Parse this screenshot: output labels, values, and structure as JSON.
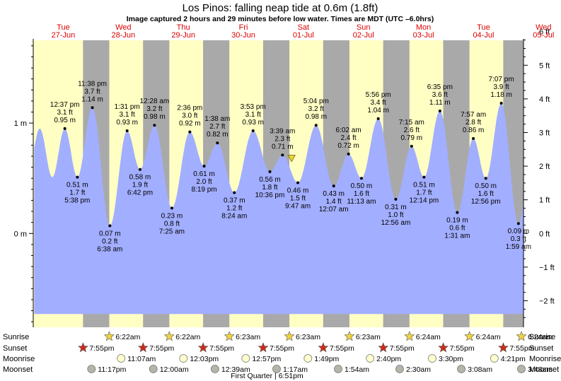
{
  "chart_data": {
    "type": "area",
    "title": "Los Pinos: falling  neap tide at 0.6m (1.8ft)",
    "subtitle": "Image captured 2 hours and 29 minutes before low water. Times are MDT (UTC –6.0hrs)",
    "x_unit": "hours since Tue 27-Jun 00:00 MDT",
    "xlim": [
      0,
      196
    ],
    "ylim_m": [
      -0.85,
      1.75
    ],
    "left_axis": [
      {
        "value": 1,
        "label": "1 m"
      },
      {
        "value": 0,
        "label": "0 m"
      }
    ],
    "right_axis": [
      {
        "value": 6,
        "label": "6 ft"
      },
      {
        "value": 5,
        "label": "5 ft"
      },
      {
        "value": 4,
        "label": "4 ft"
      },
      {
        "value": 3,
        "label": "3 ft"
      },
      {
        "value": 2,
        "label": "2 ft"
      },
      {
        "value": 1,
        "label": "1 ft"
      },
      {
        "value": 0,
        "label": "0 ft"
      },
      {
        "value": -1,
        "label": "−1 ft"
      },
      {
        "value": -2,
        "label": "−2 ft"
      }
    ],
    "days": [
      {
        "name": "Tue",
        "date": "27-Jun",
        "x": 12,
        "color": "#dd0000"
      },
      {
        "name": "Wed",
        "date": "28-Jun",
        "x": 36,
        "color": "#dd0000"
      },
      {
        "name": "Thu",
        "date": "29-Jun",
        "x": 60,
        "color": "#dd0000"
      },
      {
        "name": "Fri",
        "date": "30-Jun",
        "x": 84,
        "color": "#dd0000"
      },
      {
        "name": "Sat",
        "date": "01-Jul",
        "x": 108,
        "color": "#dd0000"
      },
      {
        "name": "Sun",
        "date": "02-Jul",
        "x": 132,
        "color": "#dd0000"
      },
      {
        "name": "Mon",
        "date": "03-Jul",
        "x": 156,
        "color": "#dd0000"
      },
      {
        "name": "Tue",
        "date": "04-Jul",
        "x": 180,
        "color": "#dd0000"
      },
      {
        "name": "Wed",
        "date": "05-Jul",
        "x": 204,
        "color": "#dd0000"
      }
    ],
    "nights": [
      [
        19.9,
        30.4
      ],
      [
        43.9,
        54.4
      ],
      [
        67.9,
        78.4
      ],
      [
        91.9,
        102.4
      ],
      [
        115.9,
        126.4
      ],
      [
        139.9,
        150.4
      ],
      [
        163.9,
        174.4
      ],
      [
        187.9,
        198.4
      ]
    ],
    "tides": [
      {
        "x": 12.62,
        "m": 0.95,
        "time": "12:37 pm",
        "ft": "3.1 ft",
        "mlabel": "0.95 m",
        "type": "high"
      },
      {
        "x": 17.63,
        "m": 0.51,
        "time": "5:38 pm",
        "ft": "1.7 ft",
        "mlabel": "0.51 m",
        "type": "low"
      },
      {
        "x": 23.63,
        "m": 1.14,
        "time": "11:38 pm",
        "ft": "3.7 ft",
        "mlabel": "1.14 m",
        "type": "high"
      },
      {
        "x": 30.63,
        "m": 0.07,
        "time": "6:38 am",
        "ft": "0.2 ft",
        "mlabel": "0.07 m",
        "type": "low"
      },
      {
        "x": 37.52,
        "m": 0.93,
        "time": "1:31 pm",
        "ft": "3.1 ft",
        "mlabel": "0.93 m",
        "type": "high"
      },
      {
        "x": 42.7,
        "m": 0.58,
        "time": "6:42 pm",
        "ft": "1.9 ft",
        "mlabel": "0.58 m",
        "type": "low"
      },
      {
        "x": 48.47,
        "m": 0.98,
        "time": "12:28 am",
        "ft": "3.2 ft",
        "mlabel": "0.98 m",
        "type": "high"
      },
      {
        "x": 55.42,
        "m": 0.23,
        "time": "7:25 am",
        "ft": "0.8 ft",
        "mlabel": "0.23 m",
        "type": "low"
      },
      {
        "x": 62.6,
        "m": 0.92,
        "time": "2:36 pm",
        "ft": "3.0 ft",
        "mlabel": "0.92 m",
        "type": "high"
      },
      {
        "x": 68.32,
        "m": 0.61,
        "time": "8:19 pm",
        "ft": "2.0 ft",
        "mlabel": "0.61 m",
        "type": "low"
      },
      {
        "x": 73.63,
        "m": 0.82,
        "time": "1:38 am",
        "ft": "2.7 ft",
        "mlabel": "0.82 m",
        "type": "high"
      },
      {
        "x": 80.4,
        "m": 0.37,
        "time": "8:24 am",
        "ft": "1.2 ft",
        "mlabel": "0.37 m",
        "type": "low"
      },
      {
        "x": 87.88,
        "m": 0.93,
        "time": "3:53 pm",
        "ft": "3.1 ft",
        "mlabel": "0.93 m",
        "type": "high"
      },
      {
        "x": 94.6,
        "m": 0.56,
        "time": "10:36 pm",
        "ft": "1.8 ft",
        "mlabel": "0.56 m",
        "type": "low"
      },
      {
        "x": 99.65,
        "m": 0.71,
        "time": "3:39 am",
        "ft": "2.3 ft",
        "mlabel": "0.71 m",
        "type": "high"
      },
      {
        "x": 105.78,
        "m": 0.46,
        "time": "9:47 am",
        "ft": "1.5 ft",
        "mlabel": "0.46 m",
        "type": "low"
      },
      {
        "x": 113.07,
        "m": 0.98,
        "time": "5:04 pm",
        "ft": "3.2 ft",
        "mlabel": "0.98 m",
        "type": "high"
      },
      {
        "x": 120.12,
        "m": 0.43,
        "time": "12:07 am",
        "ft": "1.4 ft",
        "mlabel": "0.43 m",
        "type": "low"
      },
      {
        "x": 126.03,
        "m": 0.72,
        "time": "6:02 am",
        "ft": "2.4 ft",
        "mlabel": "0.72 m",
        "type": "high"
      },
      {
        "x": 131.22,
        "m": 0.5,
        "time": "11:13 am",
        "ft": "1.6 ft",
        "mlabel": "0.50 m",
        "type": "low"
      },
      {
        "x": 137.93,
        "m": 1.04,
        "time": "5:56 pm",
        "ft": "3.4 ft",
        "mlabel": "1.04 m",
        "type": "high"
      },
      {
        "x": 144.93,
        "m": 0.31,
        "time": "12:56 am",
        "ft": "1.0 ft",
        "mlabel": "0.31 m",
        "type": "low"
      },
      {
        "x": 151.25,
        "m": 0.79,
        "time": "7:15 am",
        "ft": "2.6 ft",
        "mlabel": "0.79 m",
        "type": "high"
      },
      {
        "x": 156.23,
        "m": 0.51,
        "time": "12:14 pm",
        "ft": "1.7 ft",
        "mlabel": "0.51 m",
        "type": "low"
      },
      {
        "x": 162.58,
        "m": 1.11,
        "time": "6:35 pm",
        "ft": "3.6 ft",
        "mlabel": "1.11 m",
        "type": "high"
      },
      {
        "x": 169.52,
        "m": 0.19,
        "time": "1:31 am",
        "ft": "0.6 ft",
        "mlabel": "0.19 m",
        "type": "low"
      },
      {
        "x": 175.95,
        "m": 0.86,
        "time": "7:57 am",
        "ft": "2.8 ft",
        "mlabel": "0.86 m",
        "type": "high"
      },
      {
        "x": 180.93,
        "m": 0.5,
        "time": "12:56 pm",
        "ft": "1.6 ft",
        "mlabel": "0.50 m",
        "type": "low"
      },
      {
        "x": 187.12,
        "m": 1.18,
        "time": "7:07 pm",
        "ft": "3.9 ft",
        "mlabel": "1.18 m",
        "type": "high"
      },
      {
        "x": 193.98,
        "m": 0.09,
        "time": "1:59 am",
        "ft": "0.3 ft",
        "mlabel": "0.09 m",
        "type": "low"
      }
    ],
    "series_range": [
      0,
      196
    ],
    "now": {
      "x": 103.3,
      "m": 0.6
    },
    "rows": [
      {
        "label": "Sunrise",
        "kind": "star",
        "color": "#f2d43a",
        "events": [
          {
            "x": 30.37,
            "text": "6:22am"
          },
          {
            "x": 54.37,
            "text": "6:22am"
          },
          {
            "x": 78.38,
            "text": "6:23am"
          },
          {
            "x": 102.38,
            "text": "6:23am"
          },
          {
            "x": 126.38,
            "text": "6:23am"
          },
          {
            "x": 150.4,
            "text": "6:24am"
          },
          {
            "x": 174.4,
            "text": "6:24am"
          },
          {
            "x": 198.4,
            "text": "6:24am"
          }
        ]
      },
      {
        "label": "Sunset",
        "kind": "star",
        "color": "#cc2a1a",
        "events": [
          {
            "x": 19.92,
            "text": "7:55pm"
          },
          {
            "x": 43.92,
            "text": "7:55pm"
          },
          {
            "x": 67.92,
            "text": "7:55pm"
          },
          {
            "x": 91.92,
            "text": "7:55pm"
          },
          {
            "x": 115.92,
            "text": "7:55pm"
          },
          {
            "x": 139.92,
            "text": "7:55pm"
          },
          {
            "x": 163.92,
            "text": "7:55pm"
          },
          {
            "x": 187.92,
            "text": "7:55pm"
          }
        ]
      },
      {
        "label": "Moonrise",
        "kind": "circle",
        "color": "#ffffcc",
        "events": [
          {
            "x": 35.12,
            "text": "11:07am"
          },
          {
            "x": 60.05,
            "text": "12:03pm"
          },
          {
            "x": 84.95,
            "text": "12:57pm"
          },
          {
            "x": 109.82,
            "text": "1:49pm"
          },
          {
            "x": 134.67,
            "text": "2:40pm"
          },
          {
            "x": 159.5,
            "text": "3:30pm"
          },
          {
            "x": 184.35,
            "text": "4:21pm"
          }
        ]
      },
      {
        "label": "Moonset",
        "kind": "circle",
        "color": "#b4b4a8",
        "events": [
          {
            "x": 23.28,
            "text": "11:17pm"
          },
          {
            "x": 48.0,
            "text": "12:00am"
          },
          {
            "x": 72.65,
            "text": "12:39am"
          },
          {
            "x": 97.28,
            "text": "1:17am"
          },
          {
            "x": 121.9,
            "text": "1:54am"
          },
          {
            "x": 146.5,
            "text": "2:30am"
          },
          {
            "x": 171.13,
            "text": "3:08am"
          },
          {
            "x": 195.8,
            "text": "3:48am"
          }
        ]
      }
    ],
    "moon_phase": {
      "x": 90.85,
      "text": "First Quarter | 6:51pm"
    }
  }
}
